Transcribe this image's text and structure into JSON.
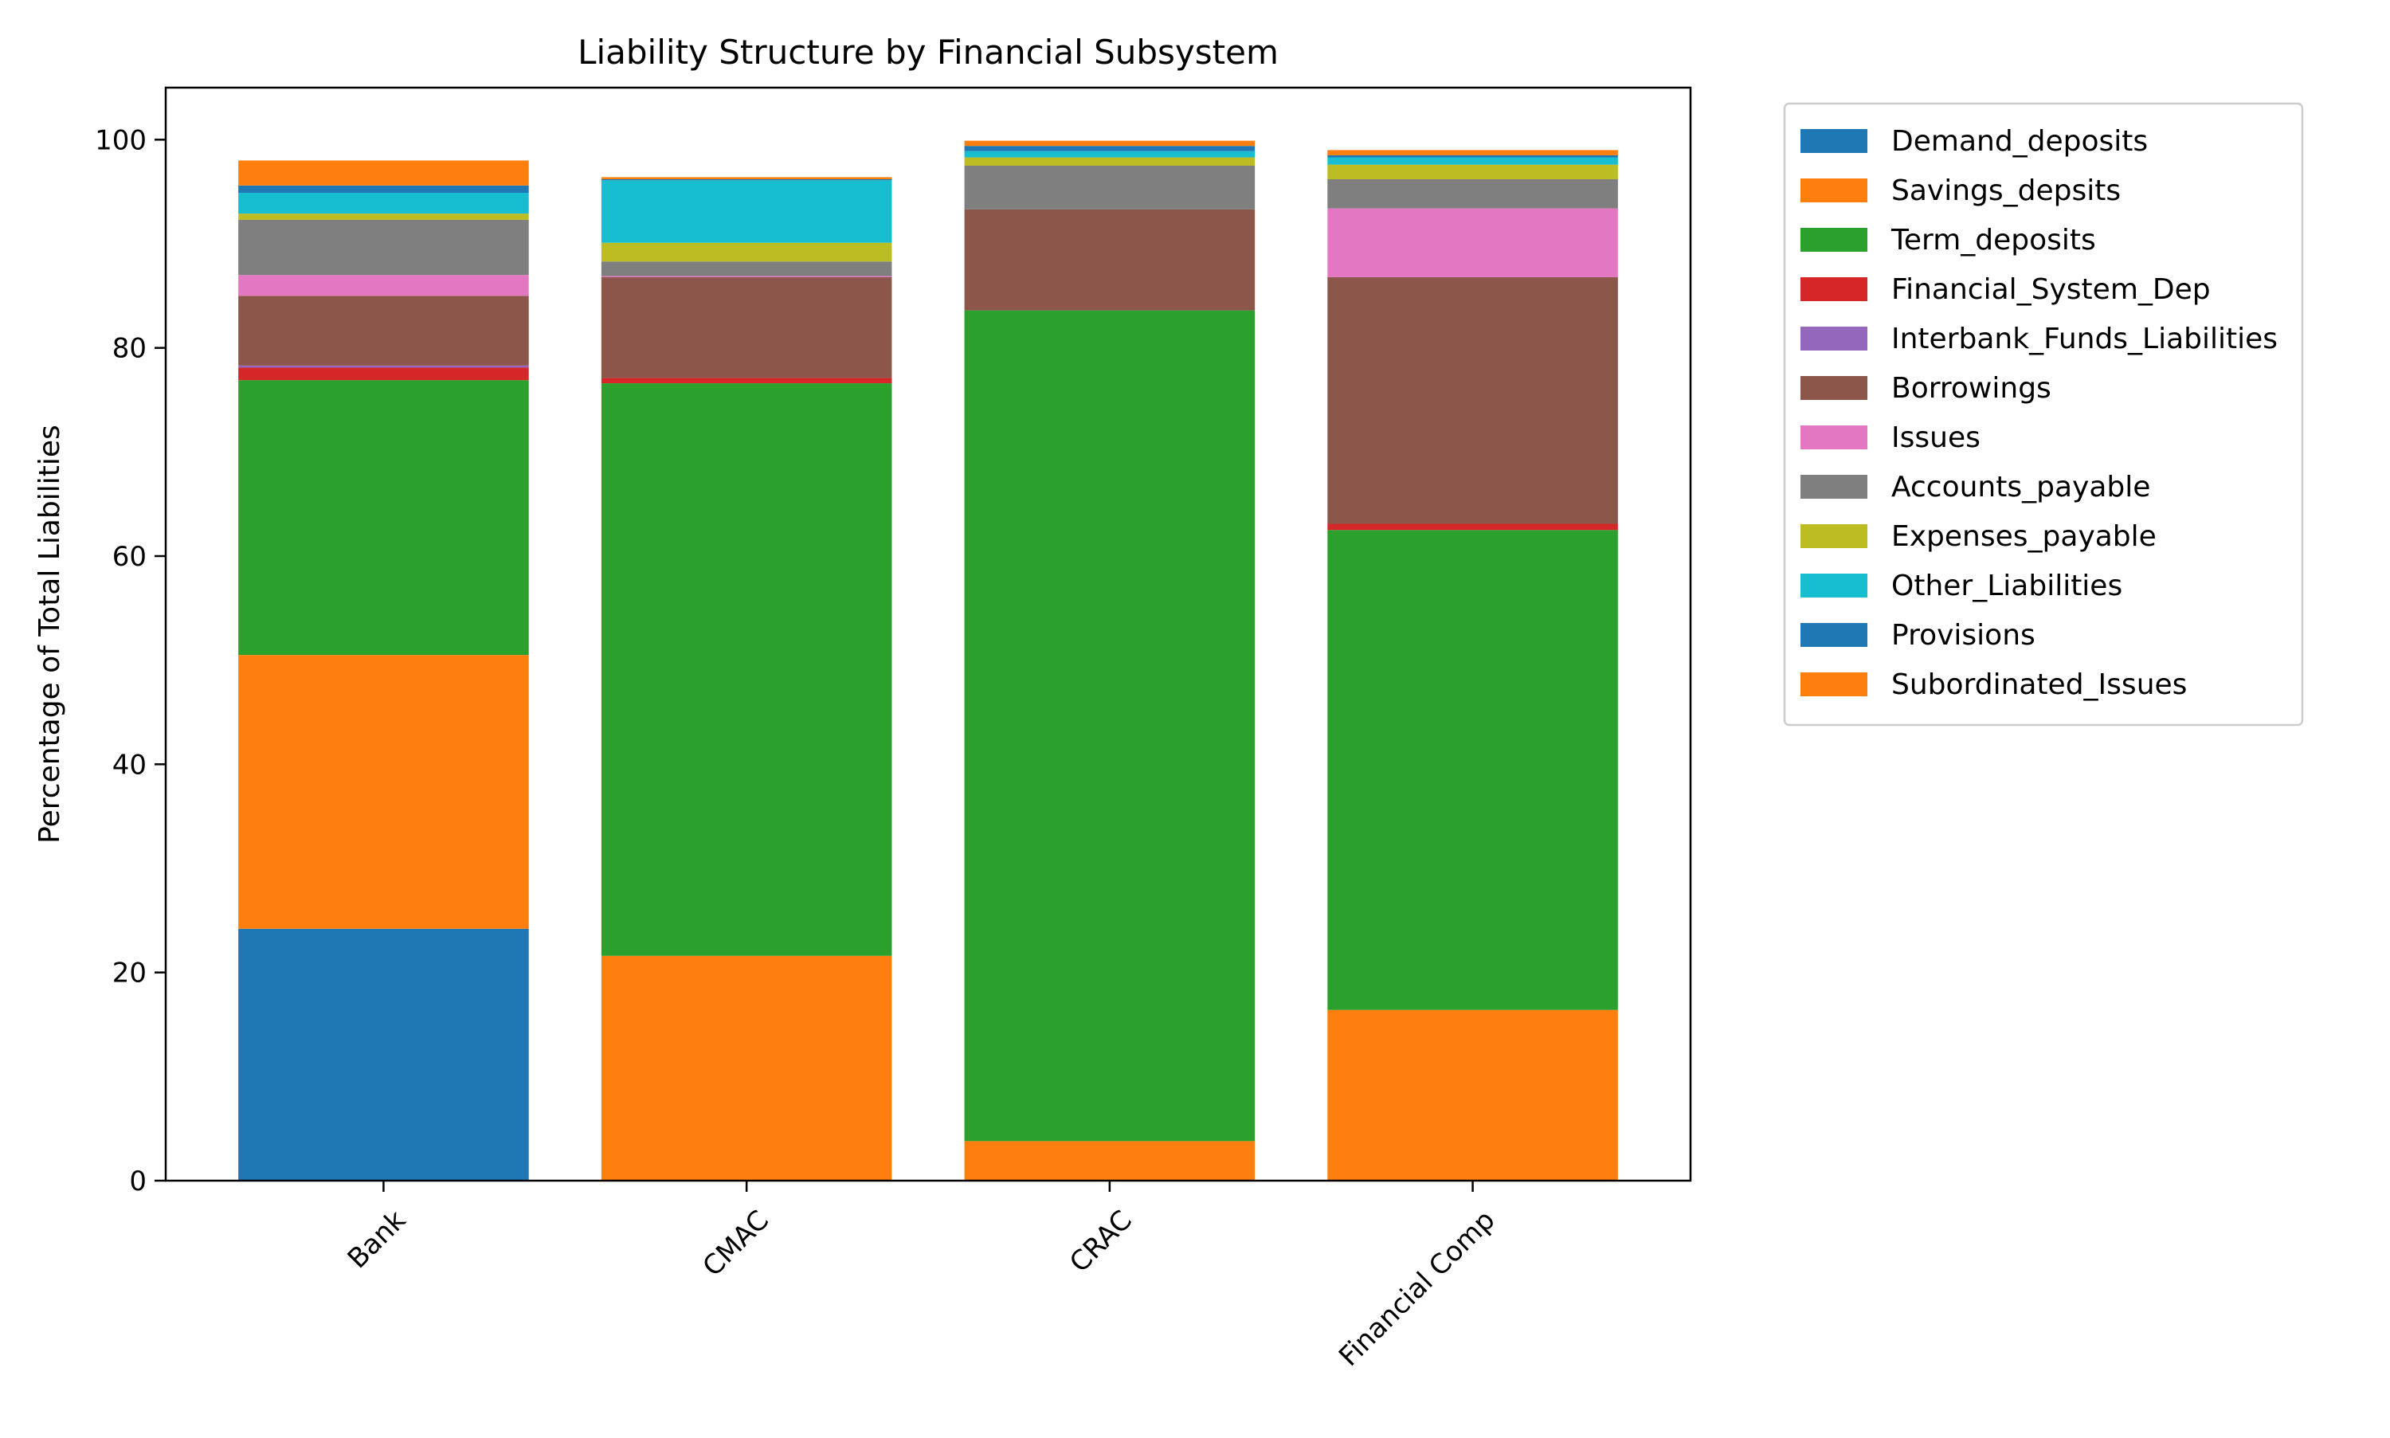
{
  "chart_data": {
    "type": "bar",
    "stacked": true,
    "title": "Liability Structure by Financial Subsystem",
    "xlabel": "",
    "ylabel": "Percentage of Total Liabilities",
    "ylim": [
      0,
      105
    ],
    "yticks": [
      0,
      20,
      40,
      60,
      80,
      100
    ],
    "grid": false,
    "legend_position": "outside-right",
    "categories": [
      "Bank",
      "CMAC",
      "CRAC",
      "Financial Comp"
    ],
    "series": [
      {
        "name": "Demand_deposits",
        "color": "#1f77b4",
        "values": [
          24.2,
          0.0,
          0.0,
          0.0
        ]
      },
      {
        "name": "Savings_depsits",
        "color": "#ff7f0e",
        "values": [
          26.3,
          21.6,
          3.8,
          16.4
        ]
      },
      {
        "name": "Term_deposits",
        "color": "#2ca02c",
        "values": [
          26.4,
          55.0,
          79.8,
          46.1
        ]
      },
      {
        "name": "Financial_System_Dep",
        "color": "#d62728",
        "values": [
          1.2,
          0.5,
          0.0,
          0.6
        ]
      },
      {
        "name": "Interbank_Funds_Liabilities",
        "color": "#9467bd",
        "values": [
          0.2,
          0.0,
          0.0,
          0.0
        ]
      },
      {
        "name": "Borrowings",
        "color": "#8c564b",
        "values": [
          6.7,
          9.7,
          9.7,
          23.7
        ]
      },
      {
        "name": "Issues",
        "color": "#e377c2",
        "values": [
          2.0,
          0.1,
          0.0,
          6.6
        ]
      },
      {
        "name": "Accounts_payable",
        "color": "#7f7f7f",
        "values": [
          5.3,
          1.4,
          4.2,
          2.8
        ]
      },
      {
        "name": "Expenses_payable",
        "color": "#bcbd22",
        "values": [
          0.6,
          1.8,
          0.8,
          1.4
        ]
      },
      {
        "name": "Other_Liabilities",
        "color": "#17becf",
        "values": [
          2.0,
          6.0,
          0.6,
          0.7
        ]
      },
      {
        "name": "Provisions",
        "color": "#1f77b4",
        "values": [
          0.7,
          0.1,
          0.5,
          0.2
        ]
      },
      {
        "name": "Subordinated_Issues",
        "color": "#ff7f0e",
        "values": [
          2.4,
          0.2,
          0.5,
          0.5
        ]
      }
    ]
  }
}
